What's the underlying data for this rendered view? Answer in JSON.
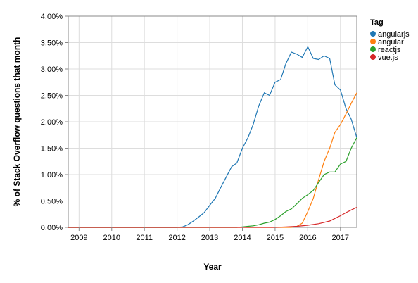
{
  "chart_data": {
    "type": "line",
    "xlabel": "Year",
    "ylabel": "% of Stack Overflow questions that month",
    "x_ticks": [
      "2009",
      "2010",
      "2011",
      "2012",
      "2013",
      "2014",
      "2015",
      "2016",
      "2017"
    ],
    "y_ticks": [
      "0.00%",
      "0.50%",
      "1.00%",
      "1.50%",
      "2.00%",
      "2.50%",
      "3.00%",
      "3.50%",
      "4.00%"
    ],
    "xlim": [
      2008.67,
      2017.5
    ],
    "ylim": [
      0,
      4
    ],
    "grid": true,
    "legend_title": "Tag",
    "legend_position": "right",
    "series": [
      {
        "name": "angularjs",
        "color": "#1f77b4",
        "points": [
          [
            2008.67,
            0
          ],
          [
            2012.0,
            0
          ],
          [
            2012.17,
            0.01
          ],
          [
            2012.33,
            0.05
          ],
          [
            2012.5,
            0.12
          ],
          [
            2012.67,
            0.2
          ],
          [
            2012.83,
            0.28
          ],
          [
            2013.0,
            0.42
          ],
          [
            2013.17,
            0.55
          ],
          [
            2013.33,
            0.75
          ],
          [
            2013.5,
            0.95
          ],
          [
            2013.67,
            1.15
          ],
          [
            2013.83,
            1.22
          ],
          [
            2014.0,
            1.5
          ],
          [
            2014.17,
            1.7
          ],
          [
            2014.33,
            1.95
          ],
          [
            2014.5,
            2.3
          ],
          [
            2014.67,
            2.55
          ],
          [
            2014.83,
            2.5
          ],
          [
            2015.0,
            2.75
          ],
          [
            2015.17,
            2.8
          ],
          [
            2015.33,
            3.1
          ],
          [
            2015.5,
            3.32
          ],
          [
            2015.67,
            3.28
          ],
          [
            2015.83,
            3.22
          ],
          [
            2016.0,
            3.42
          ],
          [
            2016.17,
            3.2
          ],
          [
            2016.33,
            3.18
          ],
          [
            2016.5,
            3.25
          ],
          [
            2016.67,
            3.2
          ],
          [
            2016.83,
            2.7
          ],
          [
            2017.0,
            2.6
          ],
          [
            2017.17,
            2.25
          ],
          [
            2017.33,
            2.05
          ],
          [
            2017.5,
            1.7
          ]
        ]
      },
      {
        "name": "angular",
        "color": "#ff7f0e",
        "points": [
          [
            2008.67,
            0
          ],
          [
            2015.5,
            0
          ],
          [
            2015.67,
            0.02
          ],
          [
            2015.83,
            0.08
          ],
          [
            2016.0,
            0.3
          ],
          [
            2016.17,
            0.55
          ],
          [
            2016.33,
            0.9
          ],
          [
            2016.5,
            1.25
          ],
          [
            2016.67,
            1.5
          ],
          [
            2016.83,
            1.8
          ],
          [
            2017.0,
            1.95
          ],
          [
            2017.17,
            2.15
          ],
          [
            2017.33,
            2.35
          ],
          [
            2017.5,
            2.55
          ]
        ]
      },
      {
        "name": "reactjs",
        "color": "#2ca02c",
        "points": [
          [
            2008.67,
            0
          ],
          [
            2013.83,
            0
          ],
          [
            2014.0,
            0.01
          ],
          [
            2014.17,
            0.02
          ],
          [
            2014.33,
            0.03
          ],
          [
            2014.5,
            0.05
          ],
          [
            2014.67,
            0.08
          ],
          [
            2014.83,
            0.1
          ],
          [
            2015.0,
            0.15
          ],
          [
            2015.17,
            0.22
          ],
          [
            2015.33,
            0.3
          ],
          [
            2015.5,
            0.35
          ],
          [
            2015.67,
            0.45
          ],
          [
            2015.83,
            0.55
          ],
          [
            2016.0,
            0.62
          ],
          [
            2016.17,
            0.7
          ],
          [
            2016.33,
            0.85
          ],
          [
            2016.5,
            1.0
          ],
          [
            2016.67,
            1.05
          ],
          [
            2016.83,
            1.05
          ],
          [
            2017.0,
            1.2
          ],
          [
            2017.17,
            1.25
          ],
          [
            2017.33,
            1.5
          ],
          [
            2017.5,
            1.7
          ]
        ]
      },
      {
        "name": "vue.js",
        "color": "#d62728",
        "points": [
          [
            2008.67,
            0
          ],
          [
            2015.0,
            0
          ],
          [
            2015.33,
            0.01
          ],
          [
            2015.67,
            0.02
          ],
          [
            2016.0,
            0.04
          ],
          [
            2016.33,
            0.07
          ],
          [
            2016.67,
            0.12
          ],
          [
            2016.83,
            0.17
          ],
          [
            2017.0,
            0.22
          ],
          [
            2017.17,
            0.28
          ],
          [
            2017.33,
            0.33
          ],
          [
            2017.5,
            0.38
          ]
        ]
      }
    ]
  }
}
